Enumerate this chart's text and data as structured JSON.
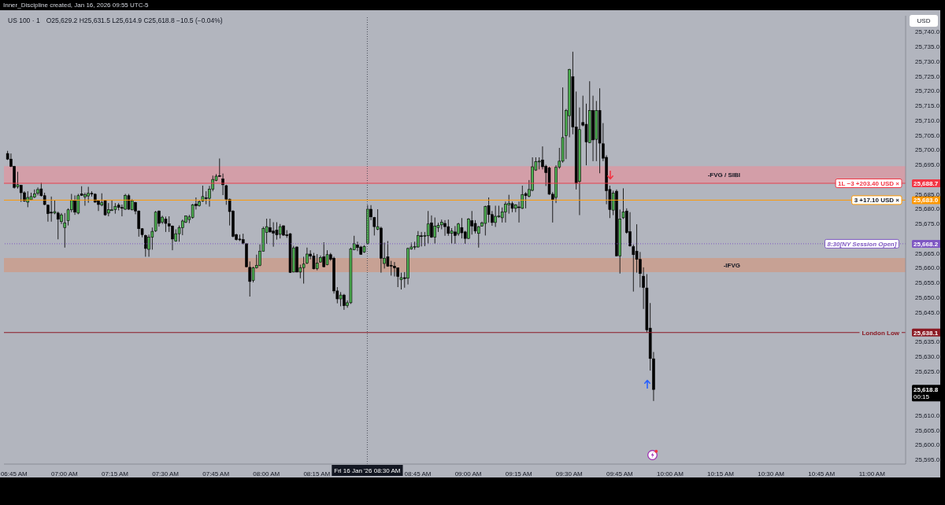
{
  "chart_data": {
    "type": "candlestick",
    "title": "US 100 · 1",
    "subtitle": "O25,629.2 H25,631.5 L25,614.9 C25,618.8 −10.5 (−0.04%)",
    "ylabel": "USD",
    "x": [
      "2026-01-16T06:43",
      "2026-01-16T06:44",
      "2026-01-16T06:45",
      "2026-01-16T06:46",
      "2026-01-16T06:47",
      "2026-01-16T06:48",
      "2026-01-16T06:49",
      "2026-01-16T06:50",
      "2026-01-16T06:51",
      "2026-01-16T06:52",
      "2026-01-16T06:53",
      "2026-01-16T06:54",
      "2026-01-16T06:55",
      "2026-01-16T06:56",
      "2026-01-16T06:57",
      "2026-01-16T06:58",
      "2026-01-16T06:59",
      "2026-01-16T07:00",
      "2026-01-16T07:01",
      "2026-01-16T07:02",
      "2026-01-16T07:03",
      "2026-01-16T07:04",
      "2026-01-16T07:05",
      "2026-01-16T07:06",
      "2026-01-16T07:07",
      "2026-01-16T07:08",
      "2026-01-16T07:09",
      "2026-01-16T07:10",
      "2026-01-16T07:11",
      "2026-01-16T07:12",
      "2026-01-16T07:13",
      "2026-01-16T07:14",
      "2026-01-16T07:15",
      "2026-01-16T07:16",
      "2026-01-16T07:17",
      "2026-01-16T07:18",
      "2026-01-16T07:19",
      "2026-01-16T07:20",
      "2026-01-16T07:21",
      "2026-01-16T07:22",
      "2026-01-16T07:23",
      "2026-01-16T07:24",
      "2026-01-16T07:25",
      "2026-01-16T07:26",
      "2026-01-16T07:27",
      "2026-01-16T07:28",
      "2026-01-16T07:29",
      "2026-01-16T07:30",
      "2026-01-16T07:31",
      "2026-01-16T07:32",
      "2026-01-16T07:33",
      "2026-01-16T07:34",
      "2026-01-16T07:35",
      "2026-01-16T07:36",
      "2026-01-16T07:37",
      "2026-01-16T07:38",
      "2026-01-16T07:39",
      "2026-01-16T07:40",
      "2026-01-16T07:41",
      "2026-01-16T07:42",
      "2026-01-16T07:43",
      "2026-01-16T07:44",
      "2026-01-16T07:45",
      "2026-01-16T07:46",
      "2026-01-16T07:47",
      "2026-01-16T07:48",
      "2026-01-16T07:49",
      "2026-01-16T07:50",
      "2026-01-16T07:51",
      "2026-01-16T07:52",
      "2026-01-16T07:53",
      "2026-01-16T07:54",
      "2026-01-16T07:55",
      "2026-01-16T07:56",
      "2026-01-16T07:57",
      "2026-01-16T07:58",
      "2026-01-16T07:59",
      "2026-01-16T08:00",
      "2026-01-16T08:01",
      "2026-01-16T08:02",
      "2026-01-16T08:03",
      "2026-01-16T08:04",
      "2026-01-16T08:05",
      "2026-01-16T08:06",
      "2026-01-16T08:07",
      "2026-01-16T08:08",
      "2026-01-16T08:09",
      "2026-01-16T08:10",
      "2026-01-16T08:11",
      "2026-01-16T08:12",
      "2026-01-16T08:13",
      "2026-01-16T08:14",
      "2026-01-16T08:15",
      "2026-01-16T08:16",
      "2026-01-16T08:17",
      "2026-01-16T08:18",
      "2026-01-16T08:19",
      "2026-01-16T08:20",
      "2026-01-16T08:21",
      "2026-01-16T08:22",
      "2026-01-16T08:23",
      "2026-01-16T08:24",
      "2026-01-16T08:25",
      "2026-01-16T08:26",
      "2026-01-16T08:27",
      "2026-01-16T08:28",
      "2026-01-16T08:29",
      "2026-01-16T08:30",
      "2026-01-16T08:31",
      "2026-01-16T08:32",
      "2026-01-16T08:33",
      "2026-01-16T08:34",
      "2026-01-16T08:35",
      "2026-01-16T08:36",
      "2026-01-16T08:37",
      "2026-01-16T08:38",
      "2026-01-16T08:39",
      "2026-01-16T08:40",
      "2026-01-16T08:41",
      "2026-01-16T08:42",
      "2026-01-16T08:43",
      "2026-01-16T08:44",
      "2026-01-16T08:45",
      "2026-01-16T08:46",
      "2026-01-16T08:47",
      "2026-01-16T08:48",
      "2026-01-16T08:49",
      "2026-01-16T08:50",
      "2026-01-16T08:51",
      "2026-01-16T08:52",
      "2026-01-16T08:53",
      "2026-01-16T08:54",
      "2026-01-16T08:55",
      "2026-01-16T08:56",
      "2026-01-16T08:57",
      "2026-01-16T08:58",
      "2026-01-16T08:59",
      "2026-01-16T09:00",
      "2026-01-16T09:01",
      "2026-01-16T09:02",
      "2026-01-16T09:03",
      "2026-01-16T09:04",
      "2026-01-16T09:05",
      "2026-01-16T09:06",
      "2026-01-16T09:07",
      "2026-01-16T09:08",
      "2026-01-16T09:09",
      "2026-01-16T09:10",
      "2026-01-16T09:11",
      "2026-01-16T09:12",
      "2026-01-16T09:13",
      "2026-01-16T09:14",
      "2026-01-16T09:15",
      "2026-01-16T09:16",
      "2026-01-16T09:17",
      "2026-01-16T09:18",
      "2026-01-16T09:19",
      "2026-01-16T09:20",
      "2026-01-16T09:21",
      "2026-01-16T09:22",
      "2026-01-16T09:23",
      "2026-01-16T09:24",
      "2026-01-16T09:25",
      "2026-01-16T09:26",
      "2026-01-16T09:27",
      "2026-01-16T09:28",
      "2026-01-16T09:29",
      "2026-01-16T09:30",
      "2026-01-16T09:31",
      "2026-01-16T09:32",
      "2026-01-16T09:33",
      "2026-01-16T09:34",
      "2026-01-16T09:35",
      "2026-01-16T09:36",
      "2026-01-16T09:37",
      "2026-01-16T09:38",
      "2026-01-16T09:39",
      "2026-01-16T09:40",
      "2026-01-16T09:41",
      "2026-01-16T09:42",
      "2026-01-16T09:43",
      "2026-01-16T09:44",
      "2026-01-16T09:45",
      "2026-01-16T09:46",
      "2026-01-16T09:47",
      "2026-01-16T09:48",
      "2026-01-16T09:49",
      "2026-01-16T09:50",
      "2026-01-16T09:51",
      "2026-01-16T09:52",
      "2026-01-16T09:53",
      "2026-01-16T09:54",
      "2026-01-16T09:55"
    ],
    "ohlc": [
      [
        25698.8,
        25699.7,
        25696.6,
        25696.9
      ],
      [
        25696.9,
        25698.8,
        25694.2,
        25694.4
      ],
      [
        25694.4,
        25694.6,
        25686.9,
        25687.3
      ],
      [
        25687.5,
        25692.6,
        25686.9,
        25688.2
      ],
      [
        25688.0,
        25688.2,
        25682.4,
        25685.5
      ],
      [
        25685.5,
        25686.0,
        25682.4,
        25682.7
      ],
      [
        25682.3,
        25686.0,
        25680.6,
        25683.9
      ],
      [
        25683.1,
        25685.5,
        25682.9,
        25684.2
      ],
      [
        25684.0,
        25686.6,
        25683.7,
        25685.1
      ],
      [
        25685.3,
        25687.3,
        25684.6,
        25686.6
      ],
      [
        25686.8,
        25688.9,
        25684.2,
        25684.5
      ],
      [
        25684.5,
        25685.5,
        25681.3,
        25681.5
      ],
      [
        25681.3,
        25681.5,
        25675.7,
        25678.4
      ],
      [
        25678.9,
        25684.2,
        25675.7,
        25678.6
      ],
      [
        25678.6,
        25682.9,
        25678.2,
        25679.1
      ],
      [
        25678.6,
        25679.1,
        25669.7,
        25676.5
      ],
      [
        25675.7,
        25678.6,
        25674.9,
        25678.0
      ],
      [
        25673.7,
        25678.6,
        25666.9,
        25675.3
      ],
      [
        25676.0,
        25680.2,
        25674.4,
        25679.7
      ],
      [
        25679.7,
        25685.1,
        25678.9,
        25682.9
      ],
      [
        25682.7,
        25684.6,
        25678.0,
        25678.9
      ],
      [
        25678.6,
        25685.1,
        25678.2,
        25684.5
      ],
      [
        25685.1,
        25687.7,
        25684.5,
        25684.6
      ],
      [
        25684.1,
        25685.5,
        25681.1,
        25684.8
      ],
      [
        25684.4,
        25687.5,
        25682.1,
        25685.3
      ],
      [
        25685.3,
        25686.0,
        25684.2,
        25685.2
      ],
      [
        25685.0,
        25685.3,
        25682.1,
        25682.3
      ],
      [
        25682.7,
        25683.1,
        25679.3,
        25681.5
      ],
      [
        25681.3,
        25685.3,
        25680.9,
        25682.1
      ],
      [
        25682.9,
        25683.0,
        25677.7,
        25678.0
      ],
      [
        25678.6,
        25682.0,
        25677.5,
        25679.8
      ],
      [
        25679.6,
        25683.0,
        25679.3,
        25679.7
      ],
      [
        25679.8,
        25682.0,
        25678.4,
        25680.9
      ],
      [
        25681.3,
        25682.0,
        25679.5,
        25680.5
      ],
      [
        25680.5,
        25681.5,
        25677.5,
        25680.3
      ],
      [
        25679.9,
        25685.1,
        25679.7,
        25684.6
      ],
      [
        25684.5,
        25685.1,
        25679.7,
        25679.9
      ],
      [
        25679.7,
        25683.3,
        25679.5,
        25682.8
      ],
      [
        25682.2,
        25682.4,
        25678.2,
        25679.3
      ],
      [
        25679.3,
        25679.5,
        25670.6,
        25673.3
      ],
      [
        25673.3,
        25673.5,
        25670.4,
        25671.3
      ],
      [
        25671.0,
        25671.3,
        25663.8,
        25666.6
      ],
      [
        25666.3,
        25671.3,
        25663.8,
        25670.4
      ],
      [
        25670.4,
        25673.7,
        25666.2,
        25672.4
      ],
      [
        25672.6,
        25679.3,
        25672.2,
        25678.9
      ],
      [
        25679.3,
        25679.5,
        25674.0,
        25675.1
      ],
      [
        25675.5,
        25677.7,
        25674.9,
        25677.2
      ],
      [
        25676.6,
        25677.4,
        25672.2,
        25675.1
      ],
      [
        25675.0,
        25677.5,
        25672.2,
        25674.2
      ],
      [
        25674.2,
        25674.4,
        25666.0,
        25669.8
      ],
      [
        25669.1,
        25673.1,
        25668.9,
        25671.6
      ],
      [
        25671.6,
        25674.4,
        25668.9,
        25673.7
      ],
      [
        25673.6,
        25676.4,
        25671.1,
        25675.9
      ],
      [
        25675.5,
        25677.8,
        25675.2,
        25677.6
      ],
      [
        25676.4,
        25678.0,
        25675.2,
        25677.3
      ],
      [
        25677.1,
        25681.7,
        25676.7,
        25681.4
      ],
      [
        25681.6,
        25683.9,
        25679.8,
        25681.1
      ],
      [
        25681.1,
        25682.9,
        25680.8,
        25682.4
      ],
      [
        25682.7,
        25687.9,
        25682.4,
        25684.2
      ],
      [
        25683.8,
        25686.0,
        25681.6,
        25683.7
      ],
      [
        25683.6,
        25687.8,
        25680.8,
        25686.7
      ],
      [
        25686.7,
        25691.3,
        25686.0,
        25690.0
      ],
      [
        25689.7,
        25691.8,
        25689.4,
        25691.1
      ],
      [
        25691.3,
        25697.1,
        25690.9,
        25691.2
      ],
      [
        25690.2,
        25692.0,
        25684.7,
        25688.2
      ],
      [
        25687.9,
        25688.2,
        25681.4,
        25683.3
      ],
      [
        25683.3,
        25683.5,
        25674.4,
        25679.1
      ],
      [
        25679.2,
        25679.6,
        25670.4,
        25670.7
      ],
      [
        25671.3,
        25671.6,
        25669.3,
        25669.6
      ],
      [
        25669.8,
        25671.3,
        25669.1,
        25669.7
      ],
      [
        25669.6,
        25671.6,
        25668.0,
        25668.4
      ],
      [
        25668.2,
        25668.4,
        25660.2,
        25660.4
      ],
      [
        25660.2,
        25662.2,
        25650.3,
        25655.4
      ],
      [
        25655.8,
        25660.4,
        25655.1,
        25660.1
      ],
      [
        25660.1,
        25664.5,
        25659.8,
        25660.9
      ],
      [
        25660.9,
        25668.0,
        25660.6,
        25665.7
      ],
      [
        25665.7,
        25674.0,
        25665.6,
        25673.4
      ],
      [
        25672.0,
        25676.7,
        25668.2,
        25674.0
      ],
      [
        25673.7,
        25676.7,
        25672.0,
        25672.2
      ],
      [
        25672.5,
        25675.5,
        25667.2,
        25671.8
      ],
      [
        25672.8,
        25675.5,
        25669.6,
        25671.2
      ],
      [
        25671.4,
        25674.9,
        25670.0,
        25674.0
      ],
      [
        25674.3,
        25674.4,
        25670.9,
        25671.1
      ],
      [
        25671.2,
        25672.8,
        25670.2,
        25671.1
      ],
      [
        25671.6,
        25671.8,
        25658.3,
        25658.5
      ],
      [
        25658.6,
        25667.5,
        25658.5,
        25666.8
      ],
      [
        25667.1,
        25667.3,
        25658.5,
        25658.6
      ],
      [
        25658.6,
        25661.1,
        25656.5,
        25660.1
      ],
      [
        25660.1,
        25663.8,
        25654.7,
        25661.3
      ],
      [
        25661.6,
        25666.9,
        25661.3,
        25664.7
      ],
      [
        25664.7,
        25666.0,
        25662.9,
        25664.0
      ],
      [
        25664.0,
        25665.1,
        25659.5,
        25659.7
      ],
      [
        25659.8,
        25664.7,
        25659.2,
        25661.6
      ],
      [
        25662.0,
        25664.2,
        25661.8,
        25663.5
      ],
      [
        25663.8,
        25668.7,
        25660.2,
        25660.4
      ],
      [
        25661.1,
        25666.0,
        25660.9,
        25664.5
      ],
      [
        25664.5,
        25665.1,
        25662.4,
        25662.9
      ],
      [
        25663.3,
        25663.8,
        25651.3,
        25652.2
      ],
      [
        25652.2,
        25653.5,
        25648.0,
        25649.5
      ],
      [
        25649.5,
        25651.8,
        25647.0,
        25650.8
      ],
      [
        25650.8,
        25651.2,
        25645.8,
        25647.2
      ],
      [
        25647.2,
        25649.0,
        25646.5,
        25648.2
      ],
      [
        25648.2,
        25666.9,
        25647.8,
        25666.4
      ],
      [
        25666.2,
        25670.9,
        25666.0,
        25668.2
      ],
      [
        25667.8,
        25668.9,
        25665.7,
        25666.9
      ],
      [
        25667.1,
        25667.5,
        25664.5,
        25664.6
      ],
      [
        25665.4,
        25667.7,
        25665.1,
        25667.3
      ],
      [
        25668.2,
        25681.3,
        25668.0,
        25679.9
      ],
      [
        25679.9,
        25681.3,
        25676.2,
        25677.3
      ],
      [
        25677.1,
        25677.3,
        25671.0,
        25674.0
      ],
      [
        25673.1,
        25679.9,
        25672.8,
        25674.0
      ],
      [
        25673.5,
        25674.0,
        25658.4,
        25663.3
      ],
      [
        25661.5,
        25668.6,
        25659.8,
        25663.3
      ],
      [
        25663.8,
        25669.1,
        25660.4,
        25660.6
      ],
      [
        25660.9,
        25662.4,
        25657.4,
        25660.8
      ],
      [
        25660.6,
        25662.0,
        25657.1,
        25660.0
      ],
      [
        25660.0,
        25660.2,
        25653.5,
        25657.1
      ],
      [
        25656.0,
        25658.4,
        25652.7,
        25656.7
      ],
      [
        25656.7,
        25658.6,
        25653.3,
        25656.4
      ],
      [
        25656.5,
        25666.9,
        25654.4,
        25666.6
      ],
      [
        25666.4,
        25668.6,
        25666.2,
        25667.1
      ],
      [
        25667.2,
        25668.9,
        25666.2,
        25667.3
      ],
      [
        25667.1,
        25672.5,
        25666.9,
        25671.0
      ],
      [
        25670.9,
        25672.2,
        25667.3,
        25670.7
      ],
      [
        25670.8,
        25672.2,
        25667.4,
        25671.0
      ],
      [
        25670.9,
        25679.3,
        25668.2,
        25674.9
      ],
      [
        25675.3,
        25677.8,
        25670.2,
        25670.4
      ],
      [
        25670.4,
        25677.1,
        25668.2,
        25674.2
      ],
      [
        25673.7,
        25675.3,
        25672.2,
        25674.4
      ],
      [
        25674.6,
        25676.4,
        25673.1,
        25675.5
      ],
      [
        25675.1,
        25676.2,
        25670.9,
        25674.0
      ],
      [
        25674.0,
        25676.4,
        25670.9,
        25671.7
      ],
      [
        25671.7,
        25673.5,
        25668.2,
        25672.5
      ],
      [
        25672.2,
        25674.2,
        25668.2,
        25671.0
      ],
      [
        25671.6,
        25675.3,
        25670.9,
        25674.9
      ],
      [
        25673.7,
        25676.9,
        25670.0,
        25671.9
      ],
      [
        25672.2,
        25672.6,
        25668.2,
        25670.0
      ],
      [
        25670.0,
        25676.9,
        25669.8,
        25676.6
      ],
      [
        25676.0,
        25679.3,
        25671.3,
        25674.2
      ],
      [
        25675.1,
        25676.2,
        25671.7,
        25672.5
      ],
      [
        25671.7,
        25674.2,
        25666.9,
        25674.0
      ],
      [
        25674.2,
        25675.7,
        25674.0,
        25675.3
      ],
      [
        25675.1,
        25681.1,
        25671.0,
        25680.8
      ],
      [
        25681.1,
        25683.9,
        25675.4,
        25678.1
      ],
      [
        25678.1,
        25679.3,
        25674.3,
        25675.4
      ],
      [
        25675.4,
        25681.1,
        25673.9,
        25677.5
      ],
      [
        25677.3,
        25681.1,
        25677.0,
        25677.6
      ],
      [
        25677.0,
        25680.5,
        25675.4,
        25679.0
      ],
      [
        25679.0,
        25682.5,
        25675.4,
        25681.6
      ],
      [
        25681.4,
        25684.8,
        25678.4,
        25681.9
      ],
      [
        25681.8,
        25682.5,
        25678.9,
        25680.2
      ],
      [
        25680.2,
        25681.6,
        25678.9,
        25681.4
      ],
      [
        25680.7,
        25682.5,
        25675.4,
        25680.6
      ],
      [
        25680.2,
        25687.9,
        25680.0,
        25684.9
      ],
      [
        25685.2,
        25685.7,
        25680.2,
        25684.5
      ],
      [
        25684.3,
        25689.8,
        25683.9,
        25686.6
      ],
      [
        25686.3,
        25697.5,
        25686.0,
        25694.3
      ],
      [
        25693.2,
        25697.5,
        25692.9,
        25696.0
      ],
      [
        25696.1,
        25697.5,
        25693.4,
        25696.2
      ],
      [
        25696.6,
        25701.2,
        25693.4,
        25694.3
      ],
      [
        25694.5,
        25695.0,
        25687.8,
        25692.3
      ],
      [
        25693.9,
        25694.3,
        25684.8,
        25685.0
      ],
      [
        25685.0,
        25685.7,
        25675.4,
        25683.2
      ],
      [
        25683.9,
        25694.8,
        25682.0,
        25694.1
      ],
      [
        25694.2,
        25700.7,
        25693.6,
        25696.2
      ],
      [
        25696.2,
        25721.2,
        25695.7,
        25704.2
      ],
      [
        25704.8,
        25713.9,
        25696.9,
        25713.4
      ],
      [
        25711.6,
        25727.5,
        25704.3,
        25727.3
      ],
      [
        25724.8,
        25733.3,
        25705.3,
        25707.8
      ],
      [
        25707.8,
        25719.8,
        25686.6,
        25688.7
      ],
      [
        25689.3,
        25714.4,
        25677.9,
        25706.9
      ],
      [
        25709.3,
        25718.4,
        25708.0,
        25708.4
      ],
      [
        25708.7,
        25715.7,
        25694.8,
        25702.7
      ],
      [
        25702.5,
        25723.3,
        25702.3,
        25713.4
      ],
      [
        25713.4,
        25718.4,
        25696.2,
        25703.4
      ],
      [
        25703.6,
        25716.6,
        25696.2,
        25713.4
      ],
      [
        25713.4,
        25720.9,
        25692.1,
        25702.3
      ],
      [
        25702.1,
        25709.1,
        25696.2,
        25697.2
      ],
      [
        25697.5,
        25698.2,
        25681.6,
        25686.2
      ],
      [
        25686.6,
        25687.9,
        25676.9,
        25679.8
      ],
      [
        25679.6,
        25686.2,
        25677.9,
        25685.4
      ],
      [
        25686.0,
        25686.6,
        25663.9,
        25664.1
      ],
      [
        25664.1,
        25679.8,
        25658.1,
        25676.6
      ],
      [
        25677.0,
        25687.0,
        25676.6,
        25679.0
      ],
      [
        25679.3,
        25680.2,
        25671.6,
        25672.0
      ],
      [
        25672.3,
        25678.9,
        25667.2,
        25667.5
      ],
      [
        25667.2,
        25667.9,
        25652.0,
        25664.5
      ],
      [
        25665.7,
        25674.8,
        25658.4,
        25662.9
      ],
      [
        25662.9,
        25665.4,
        25653.4,
        25658.1
      ],
      [
        25657.2,
        25660.2,
        25646.1,
        25653.4
      ],
      [
        25653.2,
        25657.9,
        25638.1,
        25639.0
      ],
      [
        25639.6,
        25648.1,
        25625.2,
        25629.3
      ],
      [
        25629.2,
        25631.5,
        25614.9,
        25618.8
      ]
    ],
    "colors": [
      "#000000",
      "#000000",
      "#000000",
      "#4caf50",
      "#000000",
      "#000000",
      "#4caf50",
      "#4caf50",
      "#4caf50",
      "#4caf50",
      "#000000",
      "#000000",
      "#000000",
      "#000000",
      "#4caf50",
      "#000000",
      "#4caf50",
      "#4caf50",
      "#4caf50",
      "#4caf50",
      "#000000",
      "#4caf50",
      "#000000",
      "#4caf50",
      "#4caf50",
      "#000000",
      "#000000",
      "#000000",
      "#4caf50",
      "#000000",
      "#4caf50",
      "#4caf50",
      "#4caf50",
      "#000000",
      "#000000",
      "#4caf50",
      "#000000",
      "#4caf50",
      "#000000",
      "#000000",
      "#000000",
      "#000000",
      "#4caf50",
      "#4caf50",
      "#4caf50",
      "#000000",
      "#4caf50",
      "#000000",
      "#000000",
      "#000000",
      "#4caf50",
      "#4caf50",
      "#4caf50",
      "#4caf50",
      "#4caf50",
      "#4caf50",
      "#000000",
      "#4caf50",
      "#4caf50",
      "#000000",
      "#4caf50",
      "#4caf50",
      "#4caf50",
      "#000000",
      "#000000",
      "#000000",
      "#000000",
      "#000000",
      "#000000",
      "#000000",
      "#000000",
      "#000000",
      "#000000",
      "#4caf50",
      "#4caf50",
      "#4caf50",
      "#4caf50",
      "#4caf50",
      "#000000",
      "#000000",
      "#000000",
      "#4caf50",
      "#000000",
      "#000000",
      "#000000",
      "#4caf50",
      "#000000",
      "#4caf50",
      "#4caf50",
      "#4caf50",
      "#000000",
      "#000000",
      "#4caf50",
      "#4caf50",
      "#000000",
      "#4caf50",
      "#000000",
      "#000000",
      "#000000",
      "#4caf50",
      "#000000",
      "#4caf50",
      "#4caf50",
      "#4caf50",
      "#000000",
      "#000000",
      "#4caf50",
      "#4caf50",
      "#000000",
      "#000000",
      "#4caf50",
      "#000000",
      "#4caf50",
      "#000000",
      "#000000",
      "#000000",
      "#000000",
      "#4caf50",
      "#000000",
      "#4caf50",
      "#4caf50",
      "#4caf50",
      "#4caf50",
      "#000000",
      "#4caf50",
      "#4caf50",
      "#000000",
      "#4caf50",
      "#4caf50",
      "#4caf50",
      "#000000",
      "#000000",
      "#4caf50",
      "#000000",
      "#4caf50",
      "#000000",
      "#000000",
      "#4caf50",
      "#000000",
      "#000000",
      "#4caf50",
      "#4caf50",
      "#4caf50",
      "#000000",
      "#000000",
      "#4caf50",
      "#4caf50",
      "#4caf50",
      "#4caf50",
      "#4caf50",
      "#000000",
      "#4caf50",
      "#000000",
      "#4caf50",
      "#000000",
      "#4caf50",
      "#4caf50",
      "#4caf50",
      "#4caf50",
      "#000000",
      "#000000",
      "#000000",
      "#000000",
      "#4caf50",
      "#4caf50",
      "#4caf50",
      "#4caf50",
      "#4caf50",
      "#000000",
      "#000000",
      "#4caf50",
      "#000000",
      "#000000",
      "#4caf50",
      "#000000",
      "#4caf50",
      "#000000",
      "#000000",
      "#000000",
      "#000000",
      "#4caf50",
      "#000000",
      "#4caf50",
      "#4caf50",
      "#000000",
      "#000000",
      "#000000",
      "#000000",
      "#000000",
      "#000000",
      "#000000",
      "#000000",
      "#000000"
    ],
    "xlim": [
      "2026-01-16T06:42",
      "2026-01-16T11:10"
    ],
    "xticks": [
      {
        "value": "2026-01-16T06:45",
        "label": "06:45 AM"
      },
      {
        "value": "2026-01-16T07:00",
        "label": "07:00 AM"
      },
      {
        "value": "2026-01-16T07:15",
        "label": "07:15 AM"
      },
      {
        "value": "2026-01-16T07:30",
        "label": "07:30 AM"
      },
      {
        "value": "2026-01-16T07:45",
        "label": "07:45 AM"
      },
      {
        "value": "2026-01-16T08:00",
        "label": "08:00 AM"
      },
      {
        "value": "2026-01-16T08:15",
        "label": "08:15 AM"
      },
      {
        "value": "2026-01-16T08:45",
        "label": "08:45 AM"
      },
      {
        "value": "2026-01-16T09:00",
        "label": "09:00 AM"
      },
      {
        "value": "2026-01-16T09:15",
        "label": "09:15 AM"
      },
      {
        "value": "2026-01-16T09:30",
        "label": "09:30 AM"
      },
      {
        "value": "2026-01-16T09:45",
        "label": "09:45 AM"
      },
      {
        "value": "2026-01-16T10:00",
        "label": "10:00 AM"
      },
      {
        "value": "2026-01-16T10:15",
        "label": "10:15 AM"
      },
      {
        "value": "2026-01-16T10:30",
        "label": "10:30 AM"
      },
      {
        "value": "2026-01-16T10:45",
        "label": "10:45 AM"
      },
      {
        "value": "2026-01-16T11:00",
        "label": "11:00 AM"
      }
    ],
    "ylim": [
      25593.5,
      25745.5
    ],
    "yticks": [
      {
        "value": 25595,
        "label": "25,595.0"
      },
      {
        "value": 25600,
        "label": "25,600.0"
      },
      {
        "value": 25605,
        "label": "25,605.0"
      },
      {
        "value": 25610,
        "label": "25,610.0"
      },
      {
        "value": 25618.8,
        "label": "25,618.8"
      },
      {
        "value": 25625,
        "label": "25,625.0"
      },
      {
        "value": 25630,
        "label": "25,630.0"
      },
      {
        "value": 25635,
        "label": "25,635.0"
      },
      {
        "value": 25638.1,
        "label": "25,638.1"
      },
      {
        "value": 25645,
        "label": "25,645.0"
      },
      {
        "value": 25650,
        "label": "25,650.0"
      },
      {
        "value": 25655,
        "label": "25,655.0"
      },
      {
        "value": 25660,
        "label": "25,660.0"
      },
      {
        "value": 25665,
        "label": "25,665.0"
      },
      {
        "value": 25668.2,
        "label": "25,668.2"
      },
      {
        "value": 25675,
        "label": "25,675.0"
      },
      {
        "value": 25680,
        "label": "25,680.0"
      },
      {
        "value": 25683.0,
        "label": "25,683.0"
      },
      {
        "value": 25685,
        "label": "25,685.0"
      },
      {
        "value": 25688.7,
        "label": "25,688.7"
      },
      {
        "value": 25695,
        "label": "25,695.0"
      },
      {
        "value": 25700,
        "label": "25,700.0"
      },
      {
        "value": 25705,
        "label": "25,705.0"
      },
      {
        "value": 25710,
        "label": "25,710.0"
      },
      {
        "value": 25715,
        "label": "25,715.0"
      },
      {
        "value": 25720,
        "label": "25,720.0"
      },
      {
        "value": 25725,
        "label": "25,725.0"
      },
      {
        "value": 25730,
        "label": "25,730.0"
      },
      {
        "value": 25735,
        "label": "25,735.0"
      },
      {
        "value": 25740,
        "label": "25,740.0"
      }
    ],
    "bands": [
      {
        "axis": "y",
        "from": 25688.9,
        "to": 25694.5,
        "color": "#d39ea8",
        "label": "-FVG / SIBI"
      },
      {
        "axis": "y",
        "from": 25658.6,
        "to": 25663.4,
        "color": "#c7a194",
        "label": "-IFVG"
      }
    ],
    "ref_lines": [
      {
        "axis": "x",
        "value": "2026-01-16T08:30",
        "label": "Fri 16 Jan '26 08:30 AM",
        "color": "#4a4e5a",
        "line_style": "dotted"
      },
      {
        "axis": "y",
        "value": 25688.7,
        "label": "1L −3 +203.40 USD ×",
        "color": "#f23645",
        "line_style": "solid"
      },
      {
        "axis": "y",
        "value": 25683.0,
        "label": "3 +17.10 USD ×",
        "color": "#ff9800",
        "line_style": "solid"
      },
      {
        "axis": "y",
        "value": 25668.2,
        "color": "#7e57c2",
        "line_style": "dotted"
      },
      {
        "axis": "y",
        "value": 25638.1,
        "label": "London Low",
        "color": "#8b1a24",
        "line_style": "solid"
      }
    ],
    "annotations": [
      "Inner_Discipline created, Jan 16, 2026 09:55 UTC-5",
      "00:15",
      {
        "text": "8:30[NY Session Open]",
        "x": "2026-01-16T10:57",
        "y": 25668.2
      }
    ]
  }
}
